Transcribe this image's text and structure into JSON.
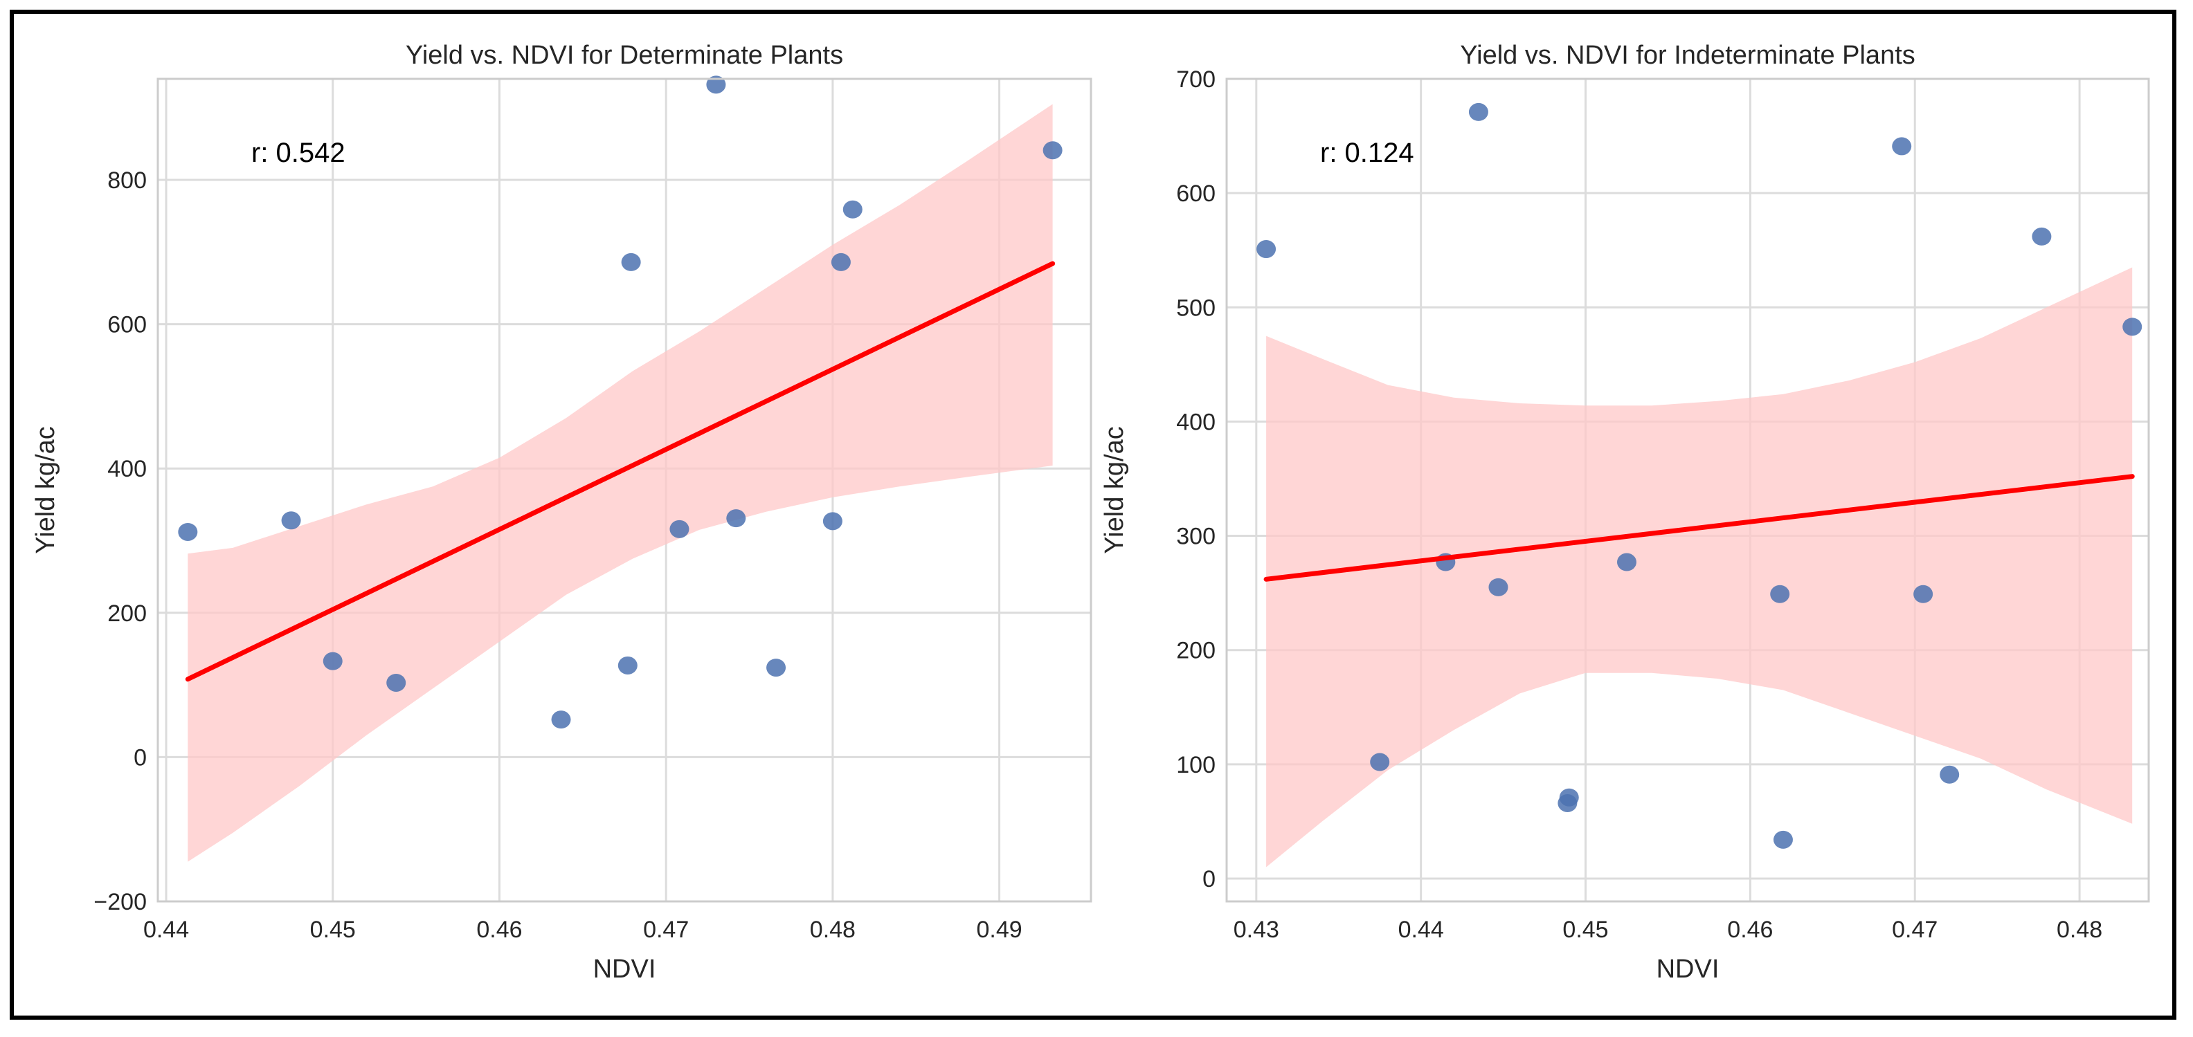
{
  "chart_data": [
    {
      "type": "scatter",
      "title": "Yield vs. NDVI for Determinate Plants",
      "xlabel": "NDVI",
      "ylabel": "Yield kg/ac",
      "xlim": [
        0.4395,
        0.4955
      ],
      "ylim": [
        -200,
        940
      ],
      "xticks": [
        0.44,
        0.45,
        0.46,
        0.47,
        0.48,
        0.49
      ],
      "xtick_labels": [
        "0.44",
        "0.45",
        "0.46",
        "0.47",
        "0.48",
        "0.49"
      ],
      "yticks": [
        -200,
        0,
        200,
        400,
        600,
        800
      ],
      "ytick_labels": [
        "−200",
        "0",
        "200",
        "400",
        "600",
        "800"
      ],
      "annotation": "r: 0.542",
      "grid": true,
      "points": [
        {
          "x": 0.4413,
          "y": 312
        },
        {
          "x": 0.4475,
          "y": 328
        },
        {
          "x": 0.45,
          "y": 133
        },
        {
          "x": 0.4538,
          "y": 103
        },
        {
          "x": 0.4637,
          "y": 52
        },
        {
          "x": 0.4677,
          "y": 127
        },
        {
          "x": 0.4679,
          "y": 686
        },
        {
          "x": 0.4708,
          "y": 316
        },
        {
          "x": 0.473,
          "y": 932
        },
        {
          "x": 0.4742,
          "y": 331
        },
        {
          "x": 0.4766,
          "y": 124
        },
        {
          "x": 0.48,
          "y": 327
        },
        {
          "x": 0.4805,
          "y": 686
        },
        {
          "x": 0.4812,
          "y": 759
        },
        {
          "x": 0.4932,
          "y": 841
        }
      ],
      "regression": {
        "x": [
          0.4413,
          0.4932
        ],
        "y": [
          108,
          684
        ]
      },
      "ci_band": [
        {
          "x": 0.4413,
          "lo": -145,
          "hi": 282
        },
        {
          "x": 0.444,
          "lo": -105,
          "hi": 290
        },
        {
          "x": 0.448,
          "lo": -40,
          "hi": 320
        },
        {
          "x": 0.452,
          "lo": 30,
          "hi": 350
        },
        {
          "x": 0.456,
          "lo": 95,
          "hi": 375
        },
        {
          "x": 0.46,
          "lo": 160,
          "hi": 415
        },
        {
          "x": 0.464,
          "lo": 225,
          "hi": 470
        },
        {
          "x": 0.468,
          "lo": 275,
          "hi": 535
        },
        {
          "x": 0.472,
          "lo": 315,
          "hi": 590
        },
        {
          "x": 0.476,
          "lo": 340,
          "hi": 650
        },
        {
          "x": 0.48,
          "lo": 360,
          "hi": 710
        },
        {
          "x": 0.484,
          "lo": 375,
          "hi": 765
        },
        {
          "x": 0.488,
          "lo": 388,
          "hi": 825
        },
        {
          "x": 0.4932,
          "lo": 404,
          "hi": 905
        }
      ],
      "colors": {
        "points": "#4c72b0",
        "line": "#ff0000",
        "band": "#ffc8c8"
      }
    },
    {
      "type": "scatter",
      "title": "Yield vs. NDVI for Indeterminate Plants",
      "xlabel": "NDVI",
      "ylabel": "Yield kg/ac",
      "xlim": [
        0.4282,
        0.4842
      ],
      "ylim": [
        -20,
        700
      ],
      "xticks": [
        0.43,
        0.44,
        0.45,
        0.46,
        0.47,
        0.48
      ],
      "xtick_labels": [
        "0.43",
        "0.44",
        "0.45",
        "0.46",
        "0.47",
        "0.48"
      ],
      "yticks": [
        0,
        100,
        200,
        300,
        400,
        500,
        600,
        700
      ],
      "ytick_labels": [
        "0",
        "100",
        "200",
        "300",
        "400",
        "500",
        "600",
        "700"
      ],
      "annotation": "r: 0.124",
      "grid": true,
      "points": [
        {
          "x": 0.4306,
          "y": 551
        },
        {
          "x": 0.4375,
          "y": 102
        },
        {
          "x": 0.4415,
          "y": 277
        },
        {
          "x": 0.4435,
          "y": 671
        },
        {
          "x": 0.4447,
          "y": 255
        },
        {
          "x": 0.4489,
          "y": 66
        },
        {
          "x": 0.449,
          "y": 71
        },
        {
          "x": 0.4525,
          "y": 277
        },
        {
          "x": 0.4618,
          "y": 249
        },
        {
          "x": 0.462,
          "y": 34
        },
        {
          "x": 0.4692,
          "y": 641
        },
        {
          "x": 0.4705,
          "y": 249
        },
        {
          "x": 0.4721,
          "y": 91
        },
        {
          "x": 0.4777,
          "y": 562
        },
        {
          "x": 0.4832,
          "y": 483
        }
      ],
      "regression": {
        "x": [
          0.4306,
          0.4832
        ],
        "y": [
          262,
          352
        ]
      },
      "ci_band": [
        {
          "x": 0.4306,
          "lo": 10,
          "hi": 475
        },
        {
          "x": 0.434,
          "lo": 50,
          "hi": 455
        },
        {
          "x": 0.438,
          "lo": 95,
          "hi": 432
        },
        {
          "x": 0.442,
          "lo": 130,
          "hi": 421
        },
        {
          "x": 0.446,
          "lo": 162,
          "hi": 416
        },
        {
          "x": 0.45,
          "lo": 180,
          "hi": 414
        },
        {
          "x": 0.454,
          "lo": 180,
          "hi": 414
        },
        {
          "x": 0.458,
          "lo": 175,
          "hi": 418
        },
        {
          "x": 0.462,
          "lo": 165,
          "hi": 424
        },
        {
          "x": 0.466,
          "lo": 145,
          "hi": 436
        },
        {
          "x": 0.47,
          "lo": 125,
          "hi": 452
        },
        {
          "x": 0.474,
          "lo": 105,
          "hi": 473
        },
        {
          "x": 0.478,
          "lo": 78,
          "hi": 500
        },
        {
          "x": 0.4832,
          "lo": 48,
          "hi": 535
        }
      ],
      "colors": {
        "points": "#4c72b0",
        "line": "#ff0000",
        "band": "#ffc8c8"
      }
    }
  ]
}
